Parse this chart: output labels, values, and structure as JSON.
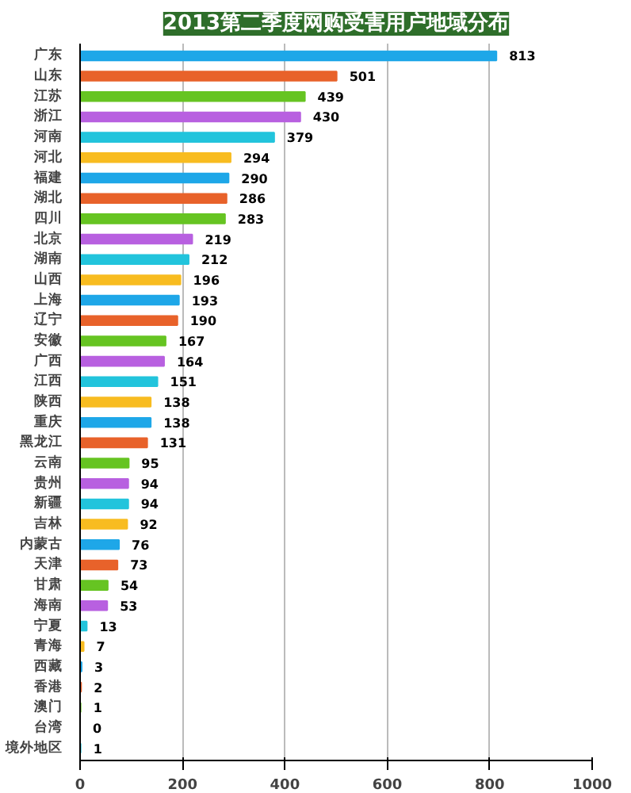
{
  "chart_data": {
    "type": "bar",
    "orientation": "horizontal",
    "title": "2013第二季度网购受害用户地域分布",
    "categories": [
      "广东",
      "山东",
      "江苏",
      "浙江",
      "河南",
      "河北",
      "福建",
      "湖北",
      "四川",
      "北京",
      "湖南",
      "山西",
      "上海",
      "辽宁",
      "安徽",
      "广西",
      "江西",
      "陕西",
      "重庆",
      "黑龙江",
      "云南",
      "贵州",
      "新疆",
      "吉林",
      "内蒙古",
      "天津",
      "甘肃",
      "海南",
      "宁夏",
      "青海",
      "西藏",
      "香港",
      "澳门",
      "台湾",
      "境外地区"
    ],
    "values": [
      813,
      501,
      439,
      430,
      379,
      294,
      290,
      286,
      283,
      219,
      212,
      196,
      193,
      190,
      167,
      164,
      151,
      138,
      138,
      131,
      95,
      94,
      94,
      92,
      76,
      73,
      54,
      53,
      13,
      7,
      3,
      2,
      1,
      0,
      1
    ],
    "colors": [
      "#1ea7e8",
      "#e8622a",
      "#66c422",
      "#b860e0",
      "#22c4dc",
      "#f8bc20",
      "#1ea7e8",
      "#e8622a",
      "#66c422",
      "#b860e0",
      "#22c4dc",
      "#f8bc20",
      "#1ea7e8",
      "#e8622a",
      "#66c422",
      "#b860e0",
      "#22c4dc",
      "#f8bc20",
      "#1ea7e8",
      "#e8622a",
      "#66c422",
      "#b860e0",
      "#22c4dc",
      "#f8bc20",
      "#1ea7e8",
      "#e8622a",
      "#66c422",
      "#b860e0",
      "#22c4dc",
      "#f8bc20",
      "#1ea7e8",
      "#e8622a",
      "#66c422",
      "#b860e0",
      "#22c4dc"
    ],
    "xlim": [
      0,
      1000
    ],
    "xticks": [
      0,
      200,
      400,
      600,
      800,
      1000
    ],
    "grid": "x",
    "data_labels": true
  }
}
